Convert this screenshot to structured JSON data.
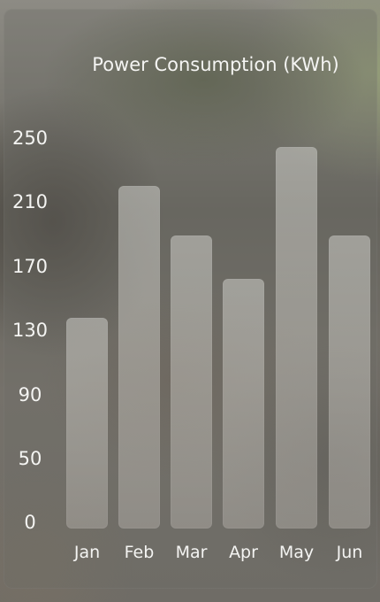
{
  "chart_data": {
    "type": "bar",
    "title": "Power Consumption (KWh)",
    "categories": [
      "Jan",
      "Feb",
      "Mar",
      "Apr",
      "May",
      "Jun"
    ],
    "values": [
      135,
      220,
      188,
      160,
      245,
      188
    ],
    "y_ticks": [
      "0",
      "50",
      "90",
      "130",
      "170",
      "210",
      "250"
    ],
    "ylim": [
      0,
      250
    ],
    "grid": false,
    "legend": "none",
    "colors": {
      "bar": "#c9c8c3",
      "text": "#f4f4f2",
      "card": "#6e6c66"
    }
  }
}
